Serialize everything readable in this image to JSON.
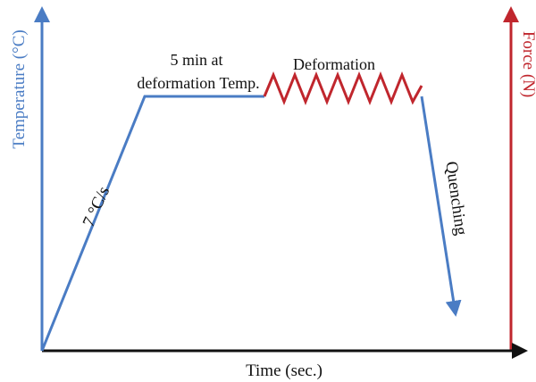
{
  "diagram": {
    "axes": {
      "y_left_label": "Temperature (°C)",
      "y_right_label": "Force (N)",
      "x_label": "Time (sec.)"
    },
    "annotations": {
      "heating_rate": "7 °C/s",
      "hold_line1": "5 min at",
      "hold_line2": "deformation Temp.",
      "deformation": "Deformation",
      "quenching": "Quenching"
    },
    "colors": {
      "temperature": "#4a7cc4",
      "force": "#c0262d",
      "axis": "#111111",
      "text": "#111111"
    }
  }
}
